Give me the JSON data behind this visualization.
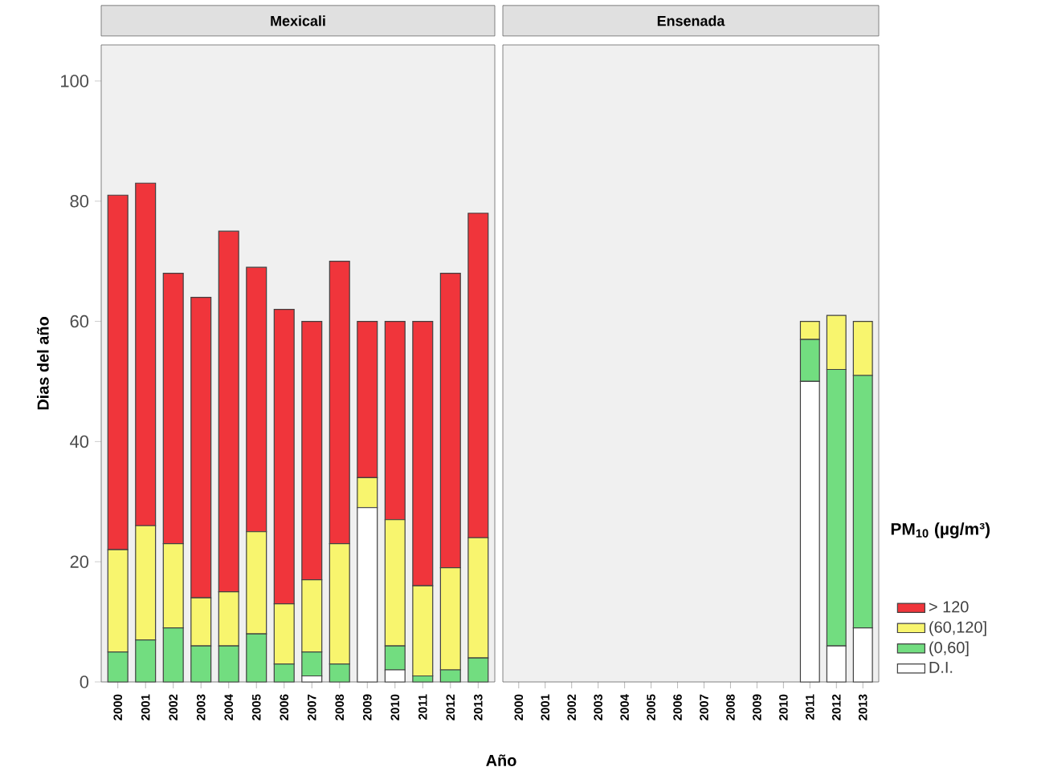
{
  "chart_data": [
    {
      "type": "bar",
      "title": "Mexicali",
      "xlabel": "Año",
      "ylabel": "Dias del año",
      "stacked": true,
      "categories": [
        "2000",
        "2001",
        "2002",
        "2003",
        "2004",
        "2005",
        "2006",
        "2007",
        "2008",
        "2009",
        "2010",
        "2011",
        "2012",
        "2013"
      ],
      "ylim": [
        0,
        106
      ],
      "yticks": [
        0,
        20,
        40,
        60,
        80,
        100
      ],
      "series": [
        {
          "color": "#ffffff",
          "values": [
            0,
            0,
            0,
            0,
            0,
            0,
            0,
            1,
            0,
            29,
            2,
            0,
            0,
            0
          ]
        },
        {
          "color": "#72dd80",
          "values": [
            5,
            7,
            9,
            6,
            6,
            8,
            3,
            4,
            3,
            0,
            4,
            1,
            2,
            4
          ]
        },
        {
          "color": "#f8f56e",
          "values": [
            17,
            19,
            14,
            8,
            9,
            17,
            10,
            12,
            20,
            5,
            21,
            15,
            17,
            20
          ]
        },
        {
          "color": "#f0353b",
          "values": [
            59,
            57,
            45,
            50,
            60,
            44,
            49,
            43,
            47,
            26,
            33,
            44,
            49,
            54
          ]
        }
      ]
    },
    {
      "type": "bar",
      "title": "Ensenada",
      "stacked": true,
      "tick_labels": "x",
      "legend": "right",
      "legend_title": "PM$_{10}$ (µg/m³)",
      "categories": [
        "2000",
        "2001",
        "2002",
        "2003",
        "2004",
        "2005",
        "2006",
        "2007",
        "2008",
        "2009",
        "2010",
        "2011",
        "2012",
        "2013"
      ],
      "ylim": [
        0,
        106
      ],
      "series": [
        {
          "name": "D.I.",
          "color": "#ffffff",
          "values": [
            null,
            null,
            null,
            null,
            null,
            null,
            null,
            null,
            null,
            null,
            null,
            50,
            6,
            9
          ]
        },
        {
          "name": "(0,60]",
          "color": "#72dd80",
          "values": [
            null,
            null,
            null,
            null,
            null,
            null,
            null,
            null,
            null,
            null,
            null,
            7,
            46,
            42
          ]
        },
        {
          "name": "(60,120]",
          "color": "#f8f56e",
          "values": [
            null,
            null,
            null,
            null,
            null,
            null,
            null,
            null,
            null,
            null,
            null,
            3,
            9,
            9
          ]
        },
        {
          "name": "> 120",
          "color": "#f0353b",
          "values": [
            null,
            null,
            null,
            null,
            null,
            null,
            null,
            null,
            null,
            null,
            null,
            0,
            0,
            0
          ]
        }
      ]
    }
  ]
}
